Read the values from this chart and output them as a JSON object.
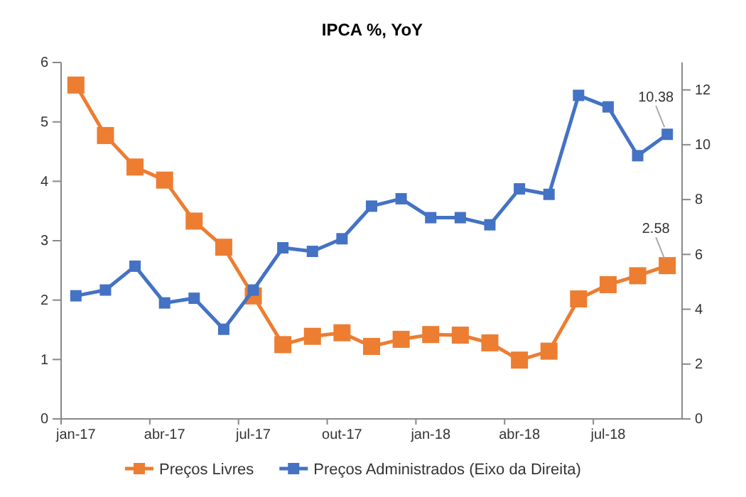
{
  "chart_data": {
    "type": "line",
    "title": "IPCA %, YoY",
    "categories": [
      "jan-17",
      null,
      null,
      "abr-17",
      null,
      null,
      "jul-17",
      null,
      null,
      "out-17",
      null,
      null,
      "jan-18",
      null,
      null,
      "abr-18",
      null,
      null,
      "jul-18",
      null,
      null
    ],
    "series": [
      {
        "name": "Preços Livres",
        "color": "#ed7d31",
        "values": [
          5.62,
          4.77,
          4.24,
          4.02,
          3.33,
          2.89,
          2.07,
          1.25,
          1.39,
          1.45,
          1.22,
          1.34,
          1.42,
          1.41,
          1.28,
          0.99,
          1.14,
          2.02,
          2.26,
          2.41,
          2.58
        ],
        "value_labels": [
          null,
          null,
          null,
          null,
          null,
          null,
          null,
          null,
          null,
          null,
          null,
          null,
          null,
          null,
          null,
          null,
          null,
          null,
          null,
          null,
          "2.58"
        ]
      },
      {
        "name": "Preços Administrados (Eixo da Direita)",
        "color": "#4472c4",
        "axis": "y2",
        "values": [
          4.49,
          4.7,
          5.57,
          4.23,
          4.4,
          3.27,
          4.7,
          6.24,
          6.11,
          6.57,
          7.76,
          8.03,
          7.34,
          7.34,
          7.08,
          8.39,
          8.19,
          11.8,
          11.38,
          9.6,
          10.38
        ],
        "value_labels": [
          null,
          null,
          null,
          null,
          null,
          null,
          null,
          null,
          null,
          null,
          null,
          null,
          null,
          null,
          null,
          null,
          null,
          null,
          null,
          null,
          "10.38"
        ]
      }
    ],
    "ylim": [
      0,
      6
    ],
    "yticks": [
      0,
      1,
      2,
      3,
      4,
      5,
      6
    ],
    "y2lim": [
      0,
      13
    ],
    "y2ticks": [
      0,
      2,
      4,
      6,
      8,
      10,
      12
    ],
    "marker": "square",
    "line_style": "solid",
    "legend": "bottom"
  }
}
